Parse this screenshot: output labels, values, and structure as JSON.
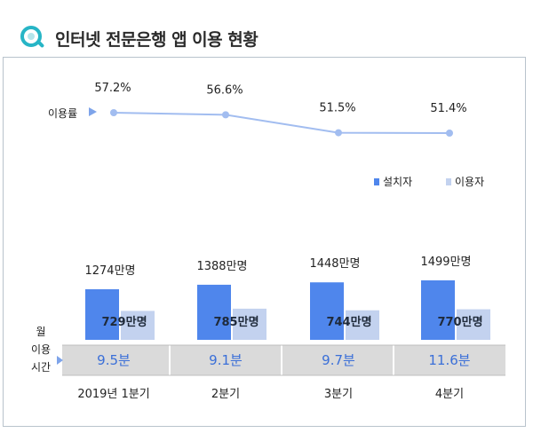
{
  "title": "인터넷 전문은행 앱 이용 현황",
  "colors": {
    "installers": "#4f86ec",
    "users": "#c3d2ef",
    "line": "#a2bdf0",
    "time_band": "#dadada",
    "time_text": "#3a6fd8",
    "arrow": "#7ea4ea"
  },
  "chart_data": {
    "type": "bar",
    "categories": [
      "2019년 1분기",
      "2분기",
      "3분기",
      "4분기"
    ],
    "series": [
      {
        "name": "설치자",
        "values": [
          1274,
          1388,
          1448,
          1499
        ],
        "labels": [
          "1274만명",
          "1388만명",
          "1448만명",
          "1499만명"
        ]
      },
      {
        "name": "이용자",
        "values": [
          729,
          785,
          744,
          770
        ],
        "labels": [
          "729만명",
          "785만명",
          "744만명",
          "770만명"
        ]
      }
    ],
    "usage_rate": {
      "label": "이용률",
      "values": [
        57.2,
        56.6,
        51.5,
        51.4
      ],
      "labels": [
        "57.2%",
        "56.6%",
        "51.5%",
        "51.4%"
      ]
    },
    "monthly_usage_time": {
      "label": [
        "월",
        "이용",
        "시간"
      ],
      "values": [
        "9.5분",
        "9.1분",
        "9.7분",
        "11.6분"
      ]
    },
    "legend": [
      "설치자",
      "이용자"
    ],
    "legend_position": "right"
  }
}
